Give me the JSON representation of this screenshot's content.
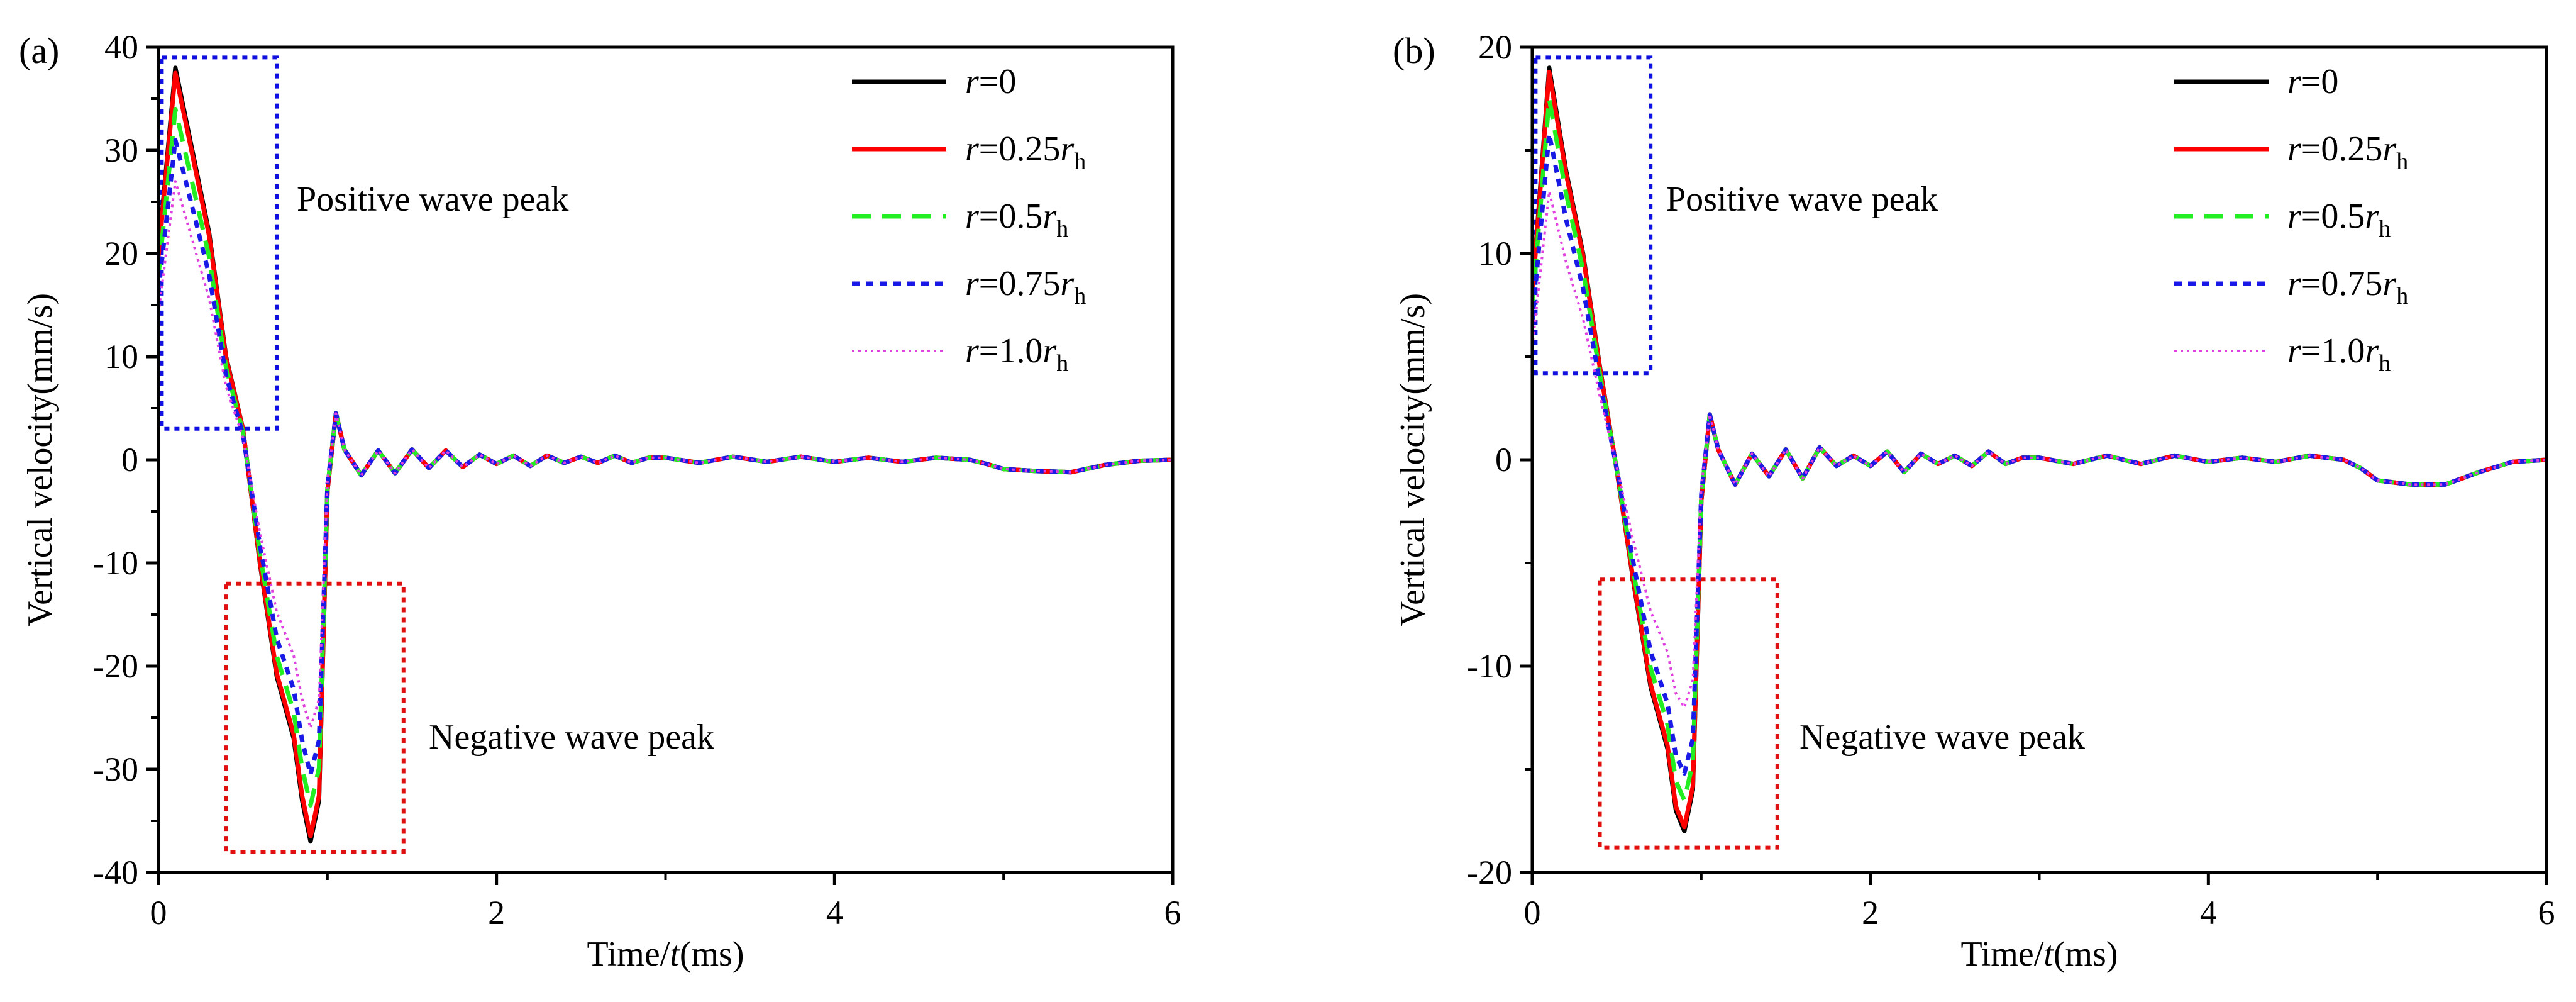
{
  "chart_data": [
    {
      "panel_label": "(a)",
      "type": "line",
      "xlabel_pre": "Time/",
      "xlabel_var": "t",
      "xlabel_post": "(ms)",
      "ylabel": "Vertical velocity(mm/s)",
      "xlim": [
        0,
        6
      ],
      "ylim": [
        -40,
        40
      ],
      "xticks": [
        0,
        2,
        4,
        6
      ],
      "xtick_labels": [
        "0",
        "2",
        "4",
        "6"
      ],
      "yticks": [
        -40,
        -30,
        -20,
        -10,
        0,
        10,
        20,
        30,
        40
      ],
      "ytick_labels": [
        "-40",
        "-30",
        "-20",
        "-10",
        "0",
        "10",
        "20",
        "30",
        "40"
      ],
      "annotations": {
        "positive": {
          "label": "Positive wave peak",
          "x0": 0.02,
          "x1": 0.7,
          "y0": 3,
          "y1": 39,
          "color": "#1010e0"
        },
        "negative": {
          "label": "Negative wave peak",
          "x0": 0.4,
          "x1": 1.45,
          "y0": -38,
          "y1": -12,
          "color": "#e01010"
        }
      },
      "base_curve": {
        "x": [
          0,
          0.1,
          0.2,
          0.3,
          0.4,
          0.5,
          0.6,
          0.7,
          0.8,
          0.85,
          0.9,
          0.95,
          1.0,
          1.05,
          1.1,
          1.2,
          1.3,
          1.4,
          1.5,
          1.6,
          1.7,
          1.8,
          1.9,
          2.0,
          2.1,
          2.2,
          2.3,
          2.4,
          2.5,
          2.6,
          2.7,
          2.8,
          2.9,
          3.0,
          3.2,
          3.4,
          3.6,
          3.8,
          4.0,
          4.2,
          4.4,
          4.6,
          4.8,
          4.9,
          5.0,
          5.2,
          5.4,
          5.6,
          5.8,
          6.0
        ],
        "y": [
          20,
          38,
          30,
          22,
          10,
          3,
          -10,
          -21,
          -27,
          -33,
          -37,
          -33,
          -3,
          4.5,
          1,
          -1.5,
          0.9,
          -1.3,
          1,
          -0.8,
          0.9,
          -0.7,
          0.5,
          -0.4,
          0.4,
          -0.6,
          0.4,
          -0.3,
          0.3,
          -0.3,
          0.4,
          -0.3,
          0.2,
          0.2,
          -0.3,
          0.3,
          -0.2,
          0.3,
          -0.2,
          0.2,
          -0.2,
          0.2,
          0,
          -0.4,
          -0.9,
          -1.1,
          -1.2,
          -0.5,
          -0.1,
          0
        ]
      },
      "series": [
        {
          "name": "r=0",
          "label_var": "r",
          "label_eq": "=0",
          "label_sub": "",
          "color": "#000000",
          "dash": "solid",
          "peak_pos": 38,
          "peak_neg": -37
        },
        {
          "name": "r=0.25rh",
          "label_var": "r",
          "label_eq": "=0.25",
          "label_sub": "h",
          "color": "#ff0000",
          "dash": "solid",
          "peak_pos": 37.5,
          "peak_neg": -36.5
        },
        {
          "name": "r=0.5rh",
          "label_var": "r",
          "label_eq": "=0.5",
          "label_sub": "h",
          "color": "#22ee22",
          "dash": "dash",
          "peak_pos": 34,
          "peak_neg": -33.5
        },
        {
          "name": "r=0.75rh",
          "label_var": "r",
          "label_eq": "=0.75",
          "label_sub": "h",
          "color": "#1a1ae6",
          "dash": "dot",
          "peak_pos": 31,
          "peak_neg": -30.5
        },
        {
          "name": "r=1.0rh",
          "label_var": "r",
          "label_eq": "=1.0",
          "label_sub": "h",
          "color": "#e040e0",
          "dash": "fine",
          "peak_pos": 27,
          "peak_neg": -26
        }
      ]
    },
    {
      "panel_label": "(b)",
      "type": "line",
      "xlabel_pre": "Time/",
      "xlabel_var": "t",
      "xlabel_post": "(ms)",
      "ylabel": "Vertical velocity(mm/s)",
      "xlim": [
        0,
        6
      ],
      "ylim": [
        -20,
        20
      ],
      "xticks": [
        0,
        2,
        4,
        6
      ],
      "xtick_labels": [
        "0",
        "2",
        "4",
        "6"
      ],
      "yticks": [
        -20,
        -10,
        0,
        10,
        20
      ],
      "ytick_labels": [
        "-20",
        "-10",
        "0",
        "10",
        "20"
      ],
      "annotations": {
        "positive": {
          "label": "Positive wave peak",
          "x0": 0.02,
          "x1": 0.7,
          "y0": 4.2,
          "y1": 19.5,
          "color": "#1010e0"
        },
        "negative": {
          "label": "Negative wave peak",
          "x0": 0.4,
          "x1": 1.45,
          "y0": -18.8,
          "y1": -5.8,
          "color": "#e01010"
        }
      },
      "base_curve": {
        "x": [
          0,
          0.1,
          0.2,
          0.3,
          0.4,
          0.5,
          0.6,
          0.7,
          0.8,
          0.85,
          0.9,
          0.95,
          1.0,
          1.05,
          1.1,
          1.2,
          1.3,
          1.4,
          1.5,
          1.6,
          1.7,
          1.8,
          1.9,
          2.0,
          2.1,
          2.2,
          2.3,
          2.4,
          2.5,
          2.6,
          2.7,
          2.8,
          2.9,
          3.0,
          3.2,
          3.4,
          3.6,
          3.8,
          4.0,
          4.2,
          4.4,
          4.6,
          4.8,
          4.9,
          5.0,
          5.2,
          5.4,
          5.6,
          5.8,
          6.0
        ],
        "y": [
          8,
          19,
          14,
          10,
          4.5,
          -0.5,
          -6,
          -11,
          -14,
          -17,
          -18,
          -16,
          -2,
          2.2,
          0.5,
          -1.2,
          0.3,
          -0.8,
          0.5,
          -0.9,
          0.6,
          -0.3,
          0.2,
          -0.3,
          0.4,
          -0.6,
          0.3,
          -0.2,
          0.2,
          -0.3,
          0.4,
          -0.2,
          0.1,
          0.1,
          -0.2,
          0.2,
          -0.2,
          0.2,
          -0.1,
          0.1,
          -0.1,
          0.2,
          0,
          -0.4,
          -1.0,
          -1.2,
          -1.2,
          -0.6,
          -0.1,
          0
        ]
      },
      "series": [
        {
          "name": "r=0",
          "label_var": "r",
          "label_eq": "=0",
          "label_sub": "",
          "color": "#000000",
          "dash": "solid",
          "peak_pos": 19,
          "peak_neg": -18
        },
        {
          "name": "r=0.25rh",
          "label_var": "r",
          "label_eq": "=0.25",
          "label_sub": "h",
          "color": "#ff0000",
          "dash": "solid",
          "peak_pos": 18.8,
          "peak_neg": -17.8
        },
        {
          "name": "r=0.5rh",
          "label_var": "r",
          "label_eq": "=0.5",
          "label_sub": "h",
          "color": "#22ee22",
          "dash": "dash",
          "peak_pos": 17.5,
          "peak_neg": -16.5
        },
        {
          "name": "r=0.75rh",
          "label_var": "r",
          "label_eq": "=0.75",
          "label_sub": "h",
          "color": "#1a1ae6",
          "dash": "dot",
          "peak_pos": 15.8,
          "peak_neg": -15.2
        },
        {
          "name": "r=1.0rh",
          "label_var": "r",
          "label_eq": "=1.0",
          "label_sub": "h",
          "color": "#e040e0",
          "dash": "fine",
          "peak_pos": 13,
          "peak_neg": -12
        }
      ]
    }
  ]
}
